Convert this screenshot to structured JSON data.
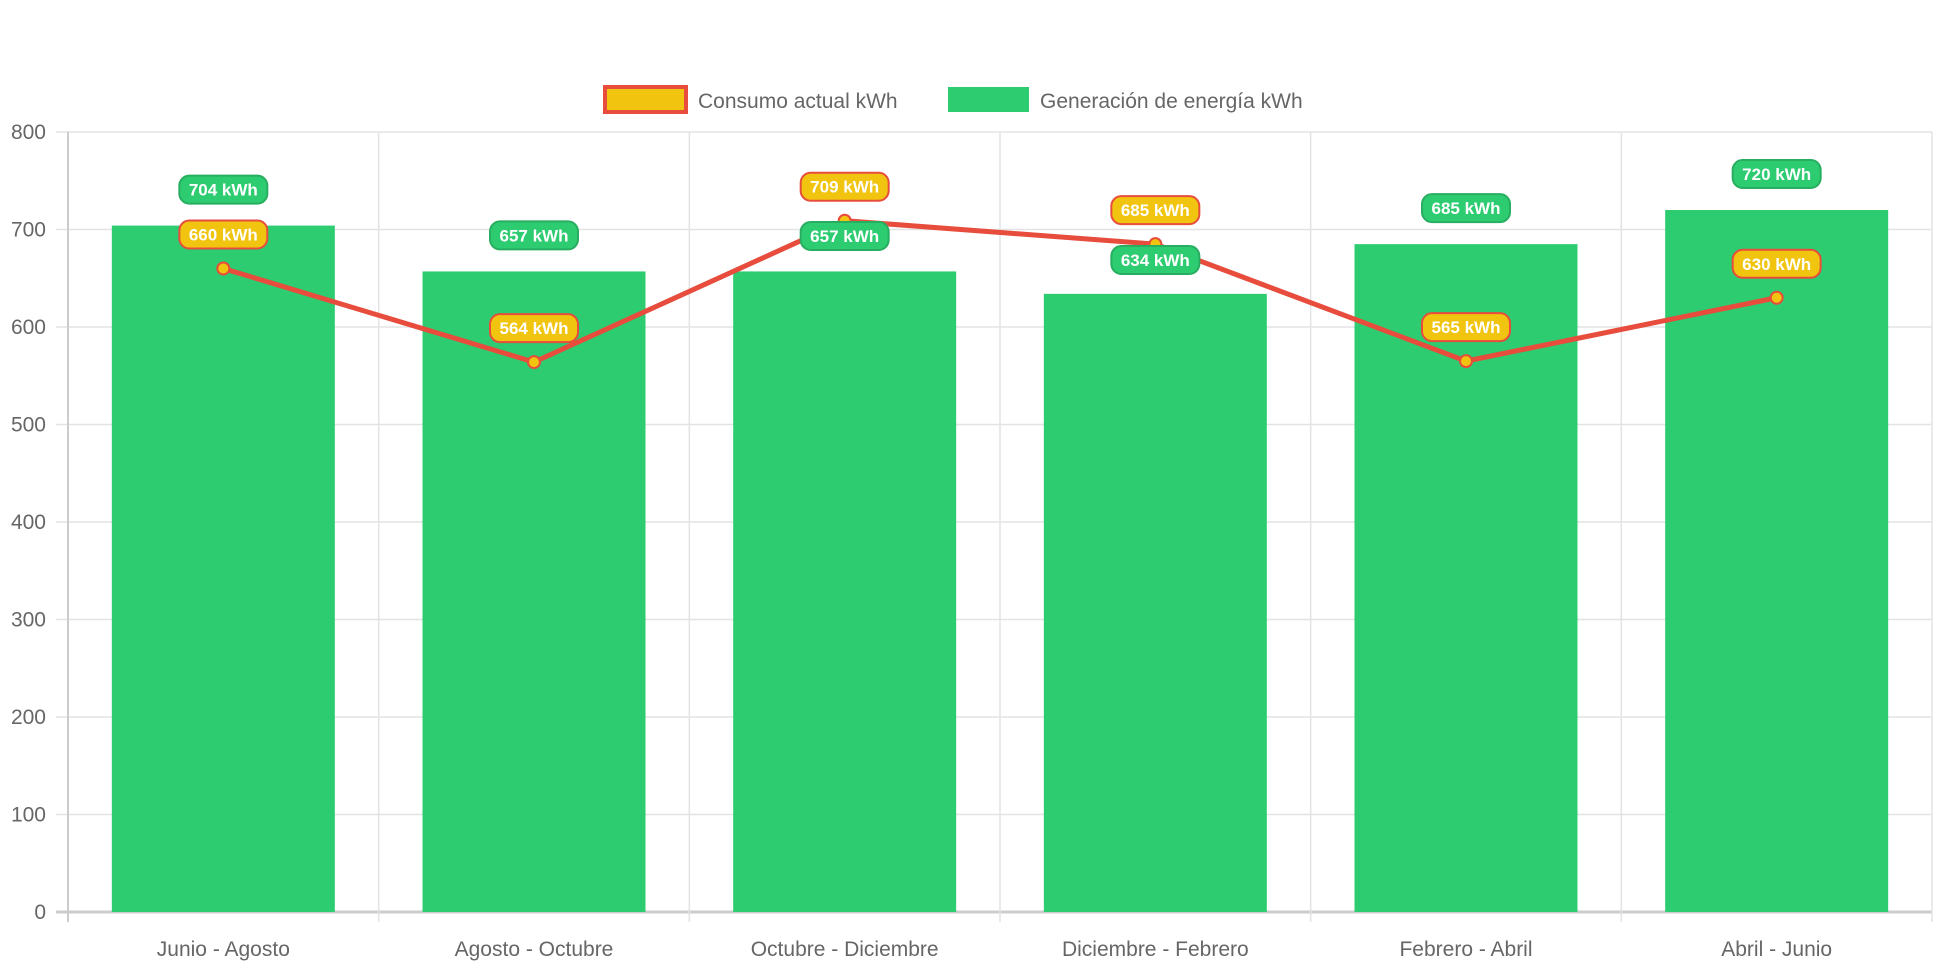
{
  "chart_data": {
    "type": "bar",
    "title": "",
    "xlabel": "",
    "ylabel": "",
    "ylim": [
      0,
      800
    ],
    "yticks": [
      0,
      100,
      200,
      300,
      400,
      500,
      600,
      700,
      800
    ],
    "grid": true,
    "legend_position": "top",
    "categories": [
      "Junio - Agosto",
      "Agosto - Octubre",
      "Octubre - Diciembre",
      "Diciembre - Febrero",
      "Febrero - Abril",
      "Abril - Junio"
    ],
    "series": [
      {
        "name": "Consumo actual kWh",
        "type": "line",
        "color": "#e74c3c",
        "fill": "#f1c40f",
        "values": [
          660,
          564,
          709,
          685,
          565,
          630
        ],
        "labels": [
          "660 kWh",
          "564 kWh",
          "709 kWh",
          "685 kWh",
          "565 kWh",
          "630 kWh"
        ]
      },
      {
        "name": "Generación de energía kWh",
        "type": "bar",
        "color": "#2ecc71",
        "values": [
          704,
          657,
          657,
          634,
          685,
          720
        ],
        "labels": [
          "704 kWh",
          "657 kWh",
          "657 kWh",
          "634 kWh",
          "685 kWh",
          "720 kWh"
        ]
      }
    ]
  }
}
